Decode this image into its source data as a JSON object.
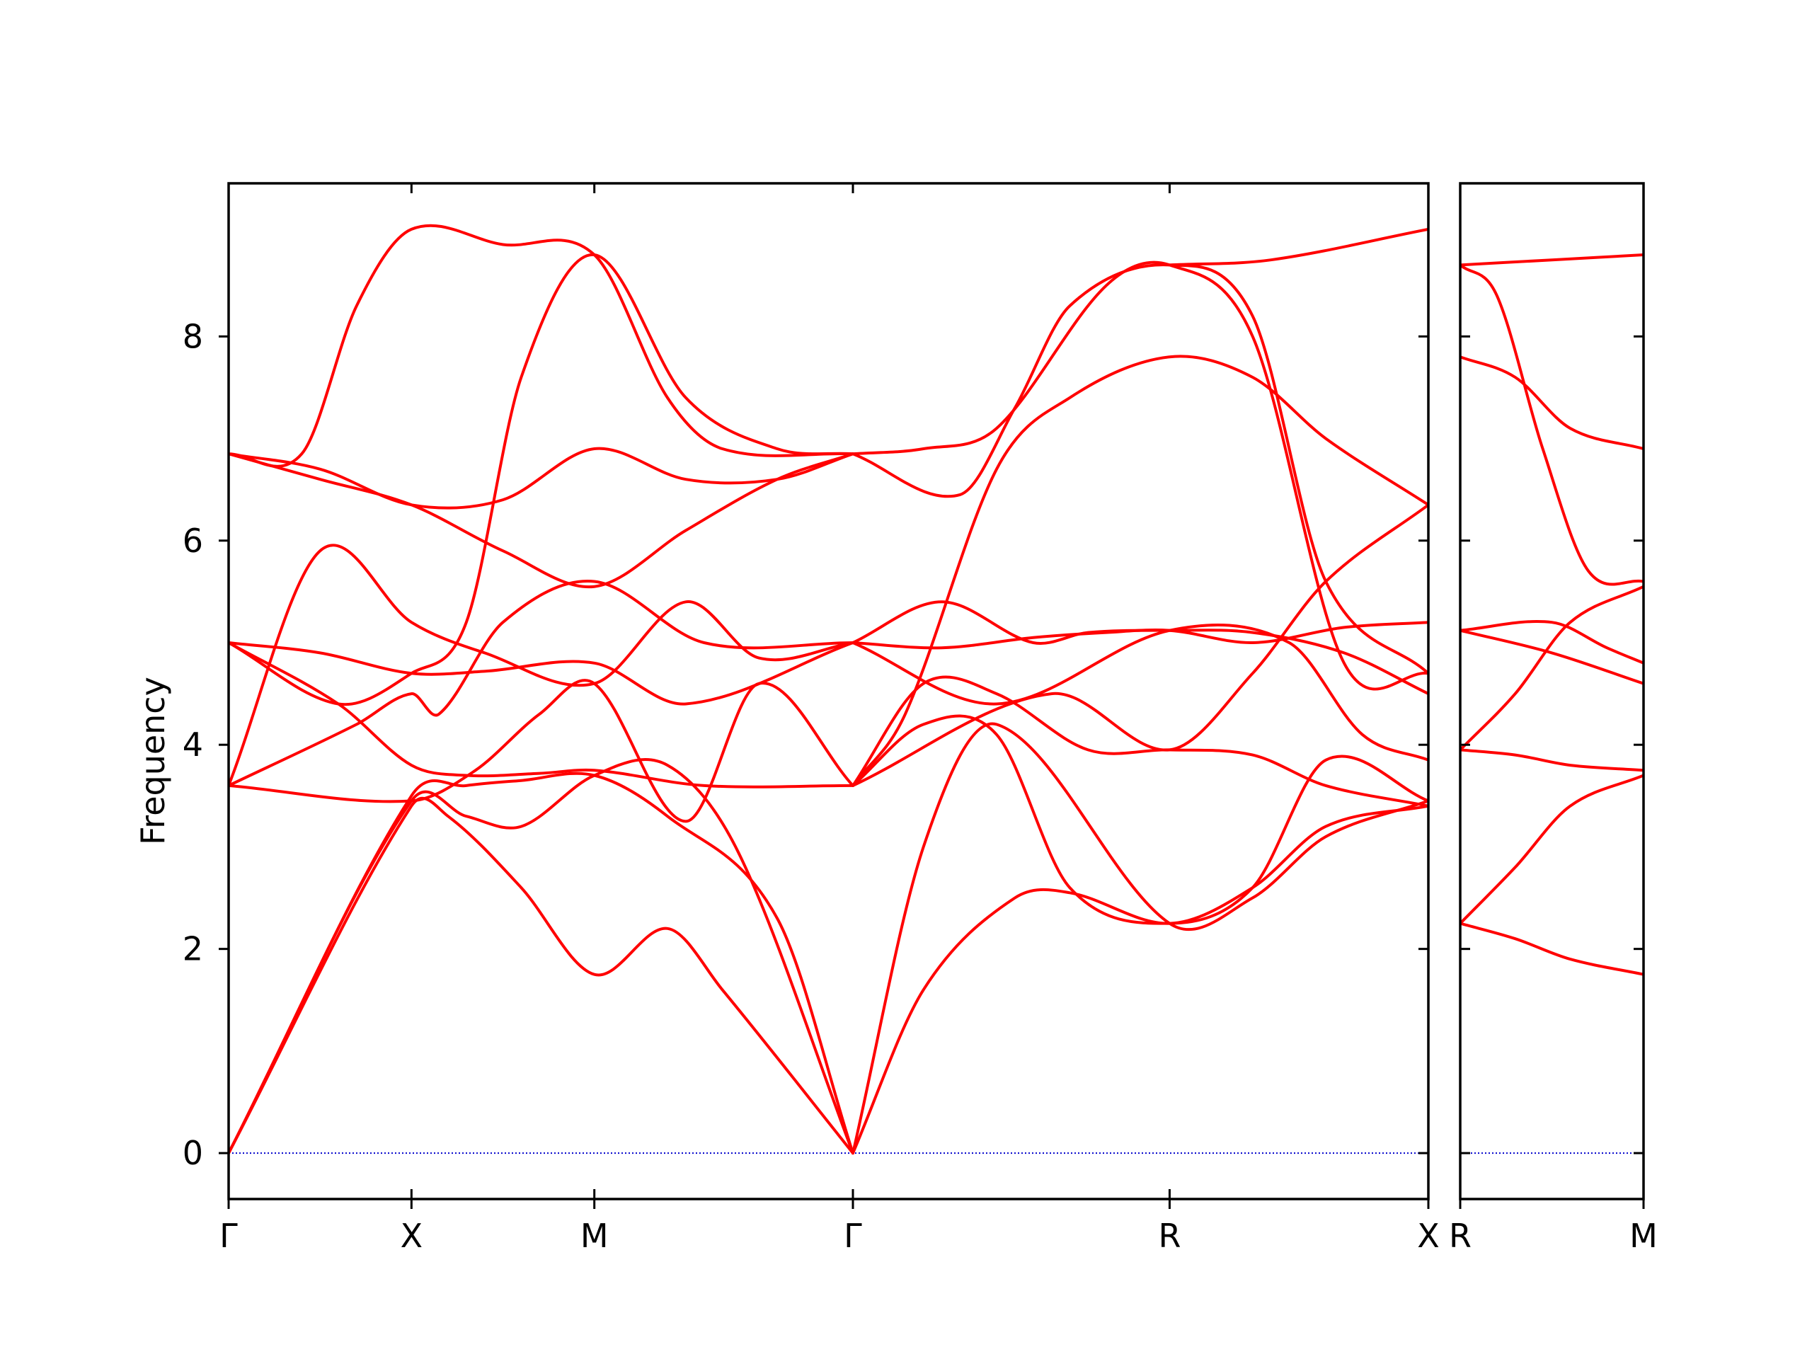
{
  "chart_data": {
    "type": "line",
    "ylabel": "Frequency",
    "ylim": [
      -0.45,
      9.5
    ],
    "yticks": [
      "0",
      "2",
      "4",
      "6",
      "8"
    ],
    "line_color": "#ff0000",
    "zero_line_color": "#0000cc",
    "panels": [
      {
        "kpath": [
          "Γ",
          "X",
          "M",
          "Γ",
          "R",
          "X"
        ],
        "kpos": [
          0,
          1,
          2,
          3.414,
          5.146,
          6.561
        ],
        "bands": [
          {
            "x": [
              0,
              1,
              1.2,
              1.6,
              2,
              2.4,
              2.7,
              3.414
            ],
            "y": [
              0,
              3.4,
              3.3,
              2.6,
              1.75,
              2.2,
              1.6,
              0
            ]
          },
          {
            "x": [
              0,
              1,
              1.3,
              1.6,
              2,
              2.4,
              2.8,
              3.414
            ],
            "y": [
              0,
              3.45,
              3.3,
              3.2,
              3.7,
              3.8,
              2.9,
              0
            ]
          },
          {
            "x": [
              0,
              1,
              1.3,
              1.6,
              2,
              2.4,
              3.0,
              3.414
            ],
            "y": [
              0,
              3.5,
              3.6,
              3.65,
              3.7,
              3.3,
              2.3,
              0
            ]
          },
          {
            "x": [
              0,
              1,
              1.35,
              1.7,
              2,
              2.5,
              2.9,
              3.414
            ],
            "y": [
              3.6,
              3.45,
              3.75,
              4.3,
              4.6,
              3.25,
              4.6,
              3.6
            ]
          },
          {
            "x": [
              0,
              0.5,
              1,
              1.4,
              2,
              2.5,
              2.9,
              3.414
            ],
            "y": [
              3.6,
              5.9,
              5.2,
              4.9,
              4.6,
              5.4,
              4.85,
              5.0
            ]
          },
          {
            "x": [
              0,
              0.6,
              1,
              1.3,
              1.7,
              2,
              2.6,
              3.414
            ],
            "y": [
              5.0,
              4.4,
              3.8,
              3.7,
              3.72,
              3.75,
              3.6,
              3.6
            ]
          },
          {
            "x": [
              0,
              0.5,
              1,
              1.4,
              2,
              2.5,
              3.414
            ],
            "y": [
              5.0,
              4.9,
              4.7,
              4.72,
              4.8,
              4.4,
              5.0
            ]
          },
          {
            "x": [
              0,
              0.7,
              1,
              1.15,
              1.5,
              2,
              2.6,
              3.414
            ],
            "y": [
              3.6,
              4.2,
              4.5,
              4.3,
              5.2,
              5.6,
              5.0,
              5.0
            ]
          },
          {
            "x": [
              0,
              0.5,
              1,
              1.5,
              2,
              2.5,
              3.0,
              3.414
            ],
            "y": [
              6.85,
              6.7,
              6.35,
              6.4,
              6.9,
              6.6,
              6.6,
              6.85
            ]
          },
          {
            "x": [
              0,
              0.5,
              1,
              1.5,
              2,
              2.5,
              3.0,
              3.414
            ],
            "y": [
              6.85,
              6.6,
              6.35,
              5.9,
              5.55,
              6.1,
              6.6,
              6.85
            ]
          },
          {
            "x": [
              0,
              0.4,
              0.7,
              1,
              1.5,
              2,
              2.4,
              2.7,
              3.414
            ],
            "y": [
              6.85,
              6.85,
              8.3,
              9.05,
              8.9,
              8.8,
              7.4,
              6.9,
              6.85
            ]
          },
          {
            "x": [
              0,
              0.6,
              1,
              1.3,
              1.6,
              2,
              2.5,
              3.0,
              3.414
            ],
            "y": [
              5.0,
              4.4,
              4.7,
              5.2,
              7.6,
              8.8,
              7.4,
              6.9,
              6.85
            ]
          },
          {
            "x": [
              3.414,
              3.8,
              4.3,
              4.6,
              5.146,
              5.6,
              6.0,
              6.561
            ],
            "y": [
              0,
              1.6,
              2.5,
              2.55,
              2.25,
              2.6,
              3.2,
              3.4
            ]
          },
          {
            "x": [
              3.414,
              3.8,
              4.2,
              5.146,
              5.6,
              6.0,
              6.561
            ],
            "y": [
              0,
              3.0,
              4.2,
              2.25,
              2.5,
              3.1,
              3.45
            ]
          },
          {
            "x": [
              3.414,
              3.8,
              4.2,
              4.7,
              5.146,
              5.6,
              6.0,
              6.561
            ],
            "y": [
              3.6,
              4.6,
              4.5,
              3.95,
              3.95,
              3.9,
              3.6,
              3.4
            ]
          },
          {
            "x": [
              3.414,
              3.8,
              4.2,
              4.6,
              5.146,
              5.6,
              6.0,
              6.561
            ],
            "y": [
              3.6,
              4.2,
              4.1,
              2.6,
              2.25,
              2.6,
              3.85,
              3.45
            ]
          },
          {
            "x": [
              3.414,
              3.9,
              4.4,
              4.7,
              5.146,
              5.6,
              6.1,
              6.561
            ],
            "y": [
              5.0,
              5.4,
              5.0,
              5.1,
              5.12,
              5.1,
              4.9,
              4.5
            ]
          },
          {
            "x": [
              3.414,
              3.9,
              4.4,
              4.8,
              5.146,
              5.6,
              6.1,
              6.561
            ],
            "y": [
              5.0,
              4.95,
              5.05,
              5.1,
              5.12,
              5.0,
              5.15,
              5.2
            ]
          },
          {
            "x": [
              3.414,
              3.7,
              4.2,
              4.6,
              5.146,
              5.6,
              6.0,
              6.561
            ],
            "y": [
              3.6,
              4.3,
              6.7,
              7.4,
              7.8,
              7.6,
              7.0,
              6.35
            ]
          },
          {
            "x": [
              3.414,
              4.0,
              4.3,
              4.6,
              5.146,
              5.6,
              6.0,
              6.561
            ],
            "y": [
              6.85,
              6.45,
              7.3,
              8.3,
              8.7,
              8.2,
              5.6,
              4.7
            ]
          },
          {
            "x": [
              3.414,
              3.8,
              4.2,
              4.8,
              5.146,
              5.6,
              6.1,
              6.561
            ],
            "y": [
              6.85,
              6.9,
              7.1,
              8.5,
              8.7,
              8.0,
              4.8,
              4.7
            ]
          },
          {
            "x": [
              3.414,
              4.5,
              5.146,
              5.6,
              6.0,
              6.561
            ],
            "y": [
              3.6,
              4.5,
              3.95,
              4.7,
              5.6,
              6.35
            ]
          },
          {
            "x": [
              3.414,
              4.2,
              5.146,
              5.8,
              6.2,
              6.561
            ],
            "y": [
              5.0,
              4.4,
              5.12,
              5.0,
              4.1,
              3.85
            ]
          },
          {
            "x": [
              5.146,
              5.7,
              6.561
            ],
            "y": [
              8.7,
              8.75,
              9.05
            ]
          }
        ]
      },
      {
        "kpath": [
          "R",
          "M"
        ],
        "kpos": [
          0,
          1
        ],
        "bands": [
          {
            "x": [
              0,
              0.3,
              0.6,
              1
            ],
            "y": [
              2.25,
              2.1,
              1.9,
              1.75
            ]
          },
          {
            "x": [
              0,
              0.3,
              0.6,
              1
            ],
            "y": [
              2.25,
              2.8,
              3.4,
              3.7
            ]
          },
          {
            "x": [
              0,
              0.3,
              0.6,
              1
            ],
            "y": [
              3.95,
              3.9,
              3.8,
              3.75
            ]
          },
          {
            "x": [
              0,
              0.3,
              0.6,
              1
            ],
            "y": [
              3.95,
              4.5,
              5.2,
              5.55
            ]
          },
          {
            "x": [
              0,
              0.5,
              1
            ],
            "y": [
              5.12,
              4.9,
              4.6
            ]
          },
          {
            "x": [
              0,
              0.5,
              0.8,
              1
            ],
            "y": [
              5.12,
              5.2,
              4.95,
              4.8
            ]
          },
          {
            "x": [
              0,
              0.3,
              0.6,
              1
            ],
            "y": [
              7.8,
              7.6,
              7.1,
              6.9
            ]
          },
          {
            "x": [
              0,
              0.2,
              0.45,
              0.7,
              1
            ],
            "y": [
              8.7,
              8.4,
              6.9,
              5.7,
              5.6
            ]
          },
          {
            "x": [
              0,
              0.5,
              1
            ],
            "y": [
              8.7,
              8.75,
              8.8
            ]
          }
        ]
      }
    ]
  }
}
